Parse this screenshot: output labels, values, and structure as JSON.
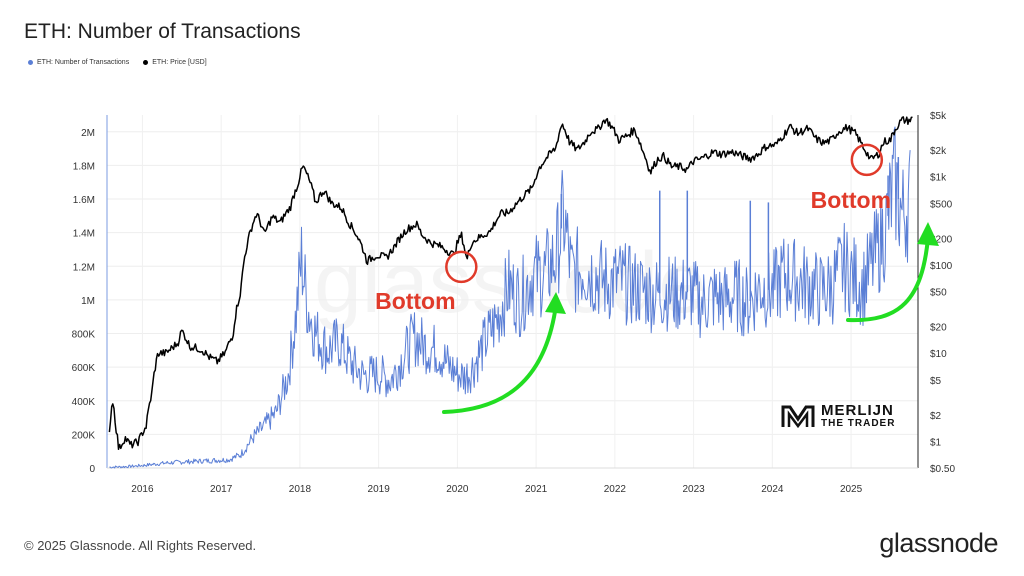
{
  "title": "ETH: Number of Transactions",
  "legend": {
    "series1": "ETH: Number of Transactions",
    "series2": "ETH: Price [USD]"
  },
  "footer": {
    "copyright": "© 2025 Glassnode. All Rights Reserved.",
    "brand": "glassnode"
  },
  "watermark": "glassnode",
  "branding": {
    "name": "MERLIJN",
    "sub": "THE TRADER"
  },
  "annotations": [
    {
      "text": "Bottom",
      "year": 2020.05,
      "price": 95
    },
    {
      "text": "Bottom",
      "year": 2025.2,
      "price": 1550
    }
  ],
  "colors": {
    "tx": "#5b7fd6",
    "price": "#000000",
    "annotation": "#e03a2a",
    "arrow": "#22dd22"
  },
  "chart_data": {
    "type": "line",
    "x_ticks": [
      {
        "year": 2016,
        "label": "2016"
      },
      {
        "year": 2017,
        "label": "2017"
      },
      {
        "year": 2018,
        "label": "2018"
      },
      {
        "year": 2019,
        "label": "2019"
      },
      {
        "year": 2020,
        "label": "2020"
      },
      {
        "year": 2021,
        "label": "2021"
      },
      {
        "year": 2022,
        "label": "2022"
      },
      {
        "year": 2023,
        "label": "2023"
      },
      {
        "year": 2024,
        "label": "2024"
      },
      {
        "year": 2025,
        "label": "2025"
      }
    ],
    "xlim": [
      2015.55,
      2025.85
    ],
    "left_axis": {
      "ylim": [
        0,
        2100000
      ],
      "ticks": [
        {
          "value": 0,
          "label": "0"
        },
        {
          "value": 200000,
          "label": "200K"
        },
        {
          "value": 400000,
          "label": "400K"
        },
        {
          "value": 600000,
          "label": "600K"
        },
        {
          "value": 800000,
          "label": "800K"
        },
        {
          "value": 1000000,
          "label": "1M"
        },
        {
          "value": 1200000,
          "label": "1.2M"
        },
        {
          "value": 1400000,
          "label": "1.4M"
        },
        {
          "value": 1600000,
          "label": "1.6M"
        },
        {
          "value": 1800000,
          "label": "1.8M"
        },
        {
          "value": 2000000,
          "label": "2M"
        }
      ]
    },
    "right_axis": {
      "scale": "log",
      "ylim": [
        0.5,
        5000
      ],
      "ticks": [
        {
          "value": 0.5,
          "label": "$0.50"
        },
        {
          "value": 1,
          "label": "$1"
        },
        {
          "value": 2,
          "label": "$2"
        },
        {
          "value": 5,
          "label": "$5"
        },
        {
          "value": 10,
          "label": "$10"
        },
        {
          "value": 20,
          "label": "$20"
        },
        {
          "value": 50,
          "label": "$50"
        },
        {
          "value": 100,
          "label": "$100"
        },
        {
          "value": 200,
          "label": "$200"
        },
        {
          "value": 500,
          "label": "$500"
        },
        {
          "value": 1000,
          "label": "$1k"
        },
        {
          "value": 2000,
          "label": "$2k"
        },
        {
          "value": 5000,
          "label": "$5k"
        }
      ]
    },
    "series": [
      {
        "name": "ETH: Number of Transactions",
        "axis": "left",
        "points": [
          [
            2015.58,
            5000
          ],
          [
            2015.8,
            8000
          ],
          [
            2016.0,
            15000
          ],
          [
            2016.3,
            30000
          ],
          [
            2016.6,
            38000
          ],
          [
            2016.9,
            45000
          ],
          [
            2017.1,
            50000
          ],
          [
            2017.25,
            80000
          ],
          [
            2017.4,
            180000
          ],
          [
            2017.55,
            250000
          ],
          [
            2017.7,
            330000
          ],
          [
            2017.85,
            550000
          ],
          [
            2017.95,
            900000
          ],
          [
            2018.02,
            1250000
          ],
          [
            2018.1,
            950000
          ],
          [
            2018.2,
            800000
          ],
          [
            2018.35,
            700000
          ],
          [
            2018.5,
            750000
          ],
          [
            2018.65,
            620000
          ],
          [
            2018.8,
            550000
          ],
          [
            2019.0,
            560000
          ],
          [
            2019.15,
            520000
          ],
          [
            2019.3,
            650000
          ],
          [
            2019.45,
            780000
          ],
          [
            2019.6,
            720000
          ],
          [
            2019.75,
            700000
          ],
          [
            2019.9,
            600000
          ],
          [
            2020.0,
            560000
          ],
          [
            2020.1,
            540000
          ],
          [
            2020.2,
            600000
          ],
          [
            2020.35,
            750000
          ],
          [
            2020.5,
            880000
          ],
          [
            2020.65,
            1080000
          ],
          [
            2020.8,
            1000000
          ],
          [
            2020.95,
            1150000
          ],
          [
            2021.1,
            1150000
          ],
          [
            2021.25,
            1250000
          ],
          [
            2021.35,
            1500000
          ],
          [
            2021.45,
            1150000
          ],
          [
            2021.6,
            1200000
          ],
          [
            2021.75,
            1150000
          ],
          [
            2021.9,
            1100000
          ],
          [
            2022.05,
            1120000
          ],
          [
            2022.2,
            1080000
          ],
          [
            2022.35,
            1060000
          ],
          [
            2022.5,
            1030000
          ],
          [
            2022.65,
            1050000
          ],
          [
            2022.8,
            1030000
          ],
          [
            2022.95,
            1050000
          ],
          [
            2023.1,
            980000
          ],
          [
            2023.25,
            1020000
          ],
          [
            2023.4,
            1000000
          ],
          [
            2023.55,
            1030000
          ],
          [
            2023.7,
            980000
          ],
          [
            2023.85,
            1080000
          ],
          [
            2024.0,
            1050000
          ],
          [
            2024.15,
            1150000
          ],
          [
            2024.3,
            1120000
          ],
          [
            2024.45,
            1090000
          ],
          [
            2024.6,
            1050000
          ],
          [
            2024.75,
            1080000
          ],
          [
            2024.9,
            1200000
          ],
          [
            2025.0,
            1150000
          ],
          [
            2025.15,
            1080000
          ],
          [
            2025.3,
            1250000
          ],
          [
            2025.45,
            1450000
          ],
          [
            2025.55,
            1700000
          ],
          [
            2025.65,
            1500000
          ],
          [
            2025.75,
            1600000
          ]
        ],
        "spikes": [
          [
            2021.32,
            1630000
          ],
          [
            2022.57,
            1650000
          ],
          [
            2022.92,
            1650000
          ],
          [
            2023.72,
            1590000
          ],
          [
            2023.95,
            1580000
          ],
          [
            2025.47,
            1740000
          ],
          [
            2025.6,
            1850000
          ]
        ]
      },
      {
        "name": "ETH: Price [USD]",
        "axis": "right",
        "points": [
          [
            2015.58,
            1.2
          ],
          [
            2015.62,
            3.0
          ],
          [
            2015.66,
            1.5
          ],
          [
            2015.7,
            0.8
          ],
          [
            2015.78,
            1.1
          ],
          [
            2015.85,
            0.9
          ],
          [
            2015.95,
            1.0
          ],
          [
            2016.05,
            1.5
          ],
          [
            2016.12,
            3.5
          ],
          [
            2016.2,
            10
          ],
          [
            2016.3,
            10
          ],
          [
            2016.45,
            13
          ],
          [
            2016.5,
            18
          ],
          [
            2016.6,
            12
          ],
          [
            2016.75,
            11
          ],
          [
            2016.85,
            9
          ],
          [
            2016.95,
            8
          ],
          [
            2017.05,
            10
          ],
          [
            2017.15,
            16
          ],
          [
            2017.25,
            50
          ],
          [
            2017.35,
            200
          ],
          [
            2017.45,
            380
          ],
          [
            2017.55,
            220
          ],
          [
            2017.65,
            350
          ],
          [
            2017.75,
            300
          ],
          [
            2017.88,
            450
          ],
          [
            2017.97,
            800
          ],
          [
            2018.04,
            1300
          ],
          [
            2018.12,
            900
          ],
          [
            2018.2,
            500
          ],
          [
            2018.3,
            700
          ],
          [
            2018.4,
            500
          ],
          [
            2018.52,
            450
          ],
          [
            2018.62,
            300
          ],
          [
            2018.72,
            220
          ],
          [
            2018.85,
            110
          ],
          [
            2018.98,
            130
          ],
          [
            2019.1,
            120
          ],
          [
            2019.2,
            160
          ],
          [
            2019.35,
            250
          ],
          [
            2019.48,
            290
          ],
          [
            2019.55,
            220
          ],
          [
            2019.65,
            180
          ],
          [
            2019.8,
            160
          ],
          [
            2019.95,
            130
          ],
          [
            2020.05,
            220
          ],
          [
            2020.12,
            110
          ],
          [
            2020.18,
            180
          ],
          [
            2020.3,
            210
          ],
          [
            2020.42,
            240
          ],
          [
            2020.55,
            380
          ],
          [
            2020.65,
            390
          ],
          [
            2020.8,
            550
          ],
          [
            2020.95,
            740
          ],
          [
            2021.05,
            1300
          ],
          [
            2021.15,
            1700
          ],
          [
            2021.25,
            2100
          ],
          [
            2021.33,
            4000
          ],
          [
            2021.42,
            2500
          ],
          [
            2021.52,
            2000
          ],
          [
            2021.62,
            2500
          ],
          [
            2021.7,
            3300
          ],
          [
            2021.78,
            3400
          ],
          [
            2021.88,
            4500
          ],
          [
            2021.95,
            3800
          ],
          [
            2022.05,
            2600
          ],
          [
            2022.15,
            2900
          ],
          [
            2022.25,
            3400
          ],
          [
            2022.35,
            2000
          ],
          [
            2022.45,
            1100
          ],
          [
            2022.55,
            1600
          ],
          [
            2022.62,
            1700
          ],
          [
            2022.72,
            1300
          ],
          [
            2022.82,
            1300
          ],
          [
            2022.92,
            1200
          ],
          [
            2023.0,
            1500
          ],
          [
            2023.1,
            1600
          ],
          [
            2023.25,
            1900
          ],
          [
            2023.35,
            1800
          ],
          [
            2023.5,
            1900
          ],
          [
            2023.62,
            1700
          ],
          [
            2023.72,
            1600
          ],
          [
            2023.82,
            1800
          ],
          [
            2023.92,
            2200
          ],
          [
            2024.05,
            2300
          ],
          [
            2024.15,
            3000
          ],
          [
            2024.22,
            3700
          ],
          [
            2024.32,
            3100
          ],
          [
            2024.45,
            3500
          ],
          [
            2024.55,
            2700
          ],
          [
            2024.65,
            2400
          ],
          [
            2024.75,
            2600
          ],
          [
            2024.85,
            3300
          ],
          [
            2024.95,
            3600
          ],
          [
            2025.05,
            3100
          ],
          [
            2025.15,
            2200
          ],
          [
            2025.25,
            1550
          ],
          [
            2025.35,
            1800
          ],
          [
            2025.42,
            2500
          ],
          [
            2025.5,
            2600
          ],
          [
            2025.58,
            3700
          ],
          [
            2025.65,
            4400
          ],
          [
            2025.72,
            4300
          ],
          [
            2025.78,
            4500
          ]
        ]
      }
    ]
  }
}
